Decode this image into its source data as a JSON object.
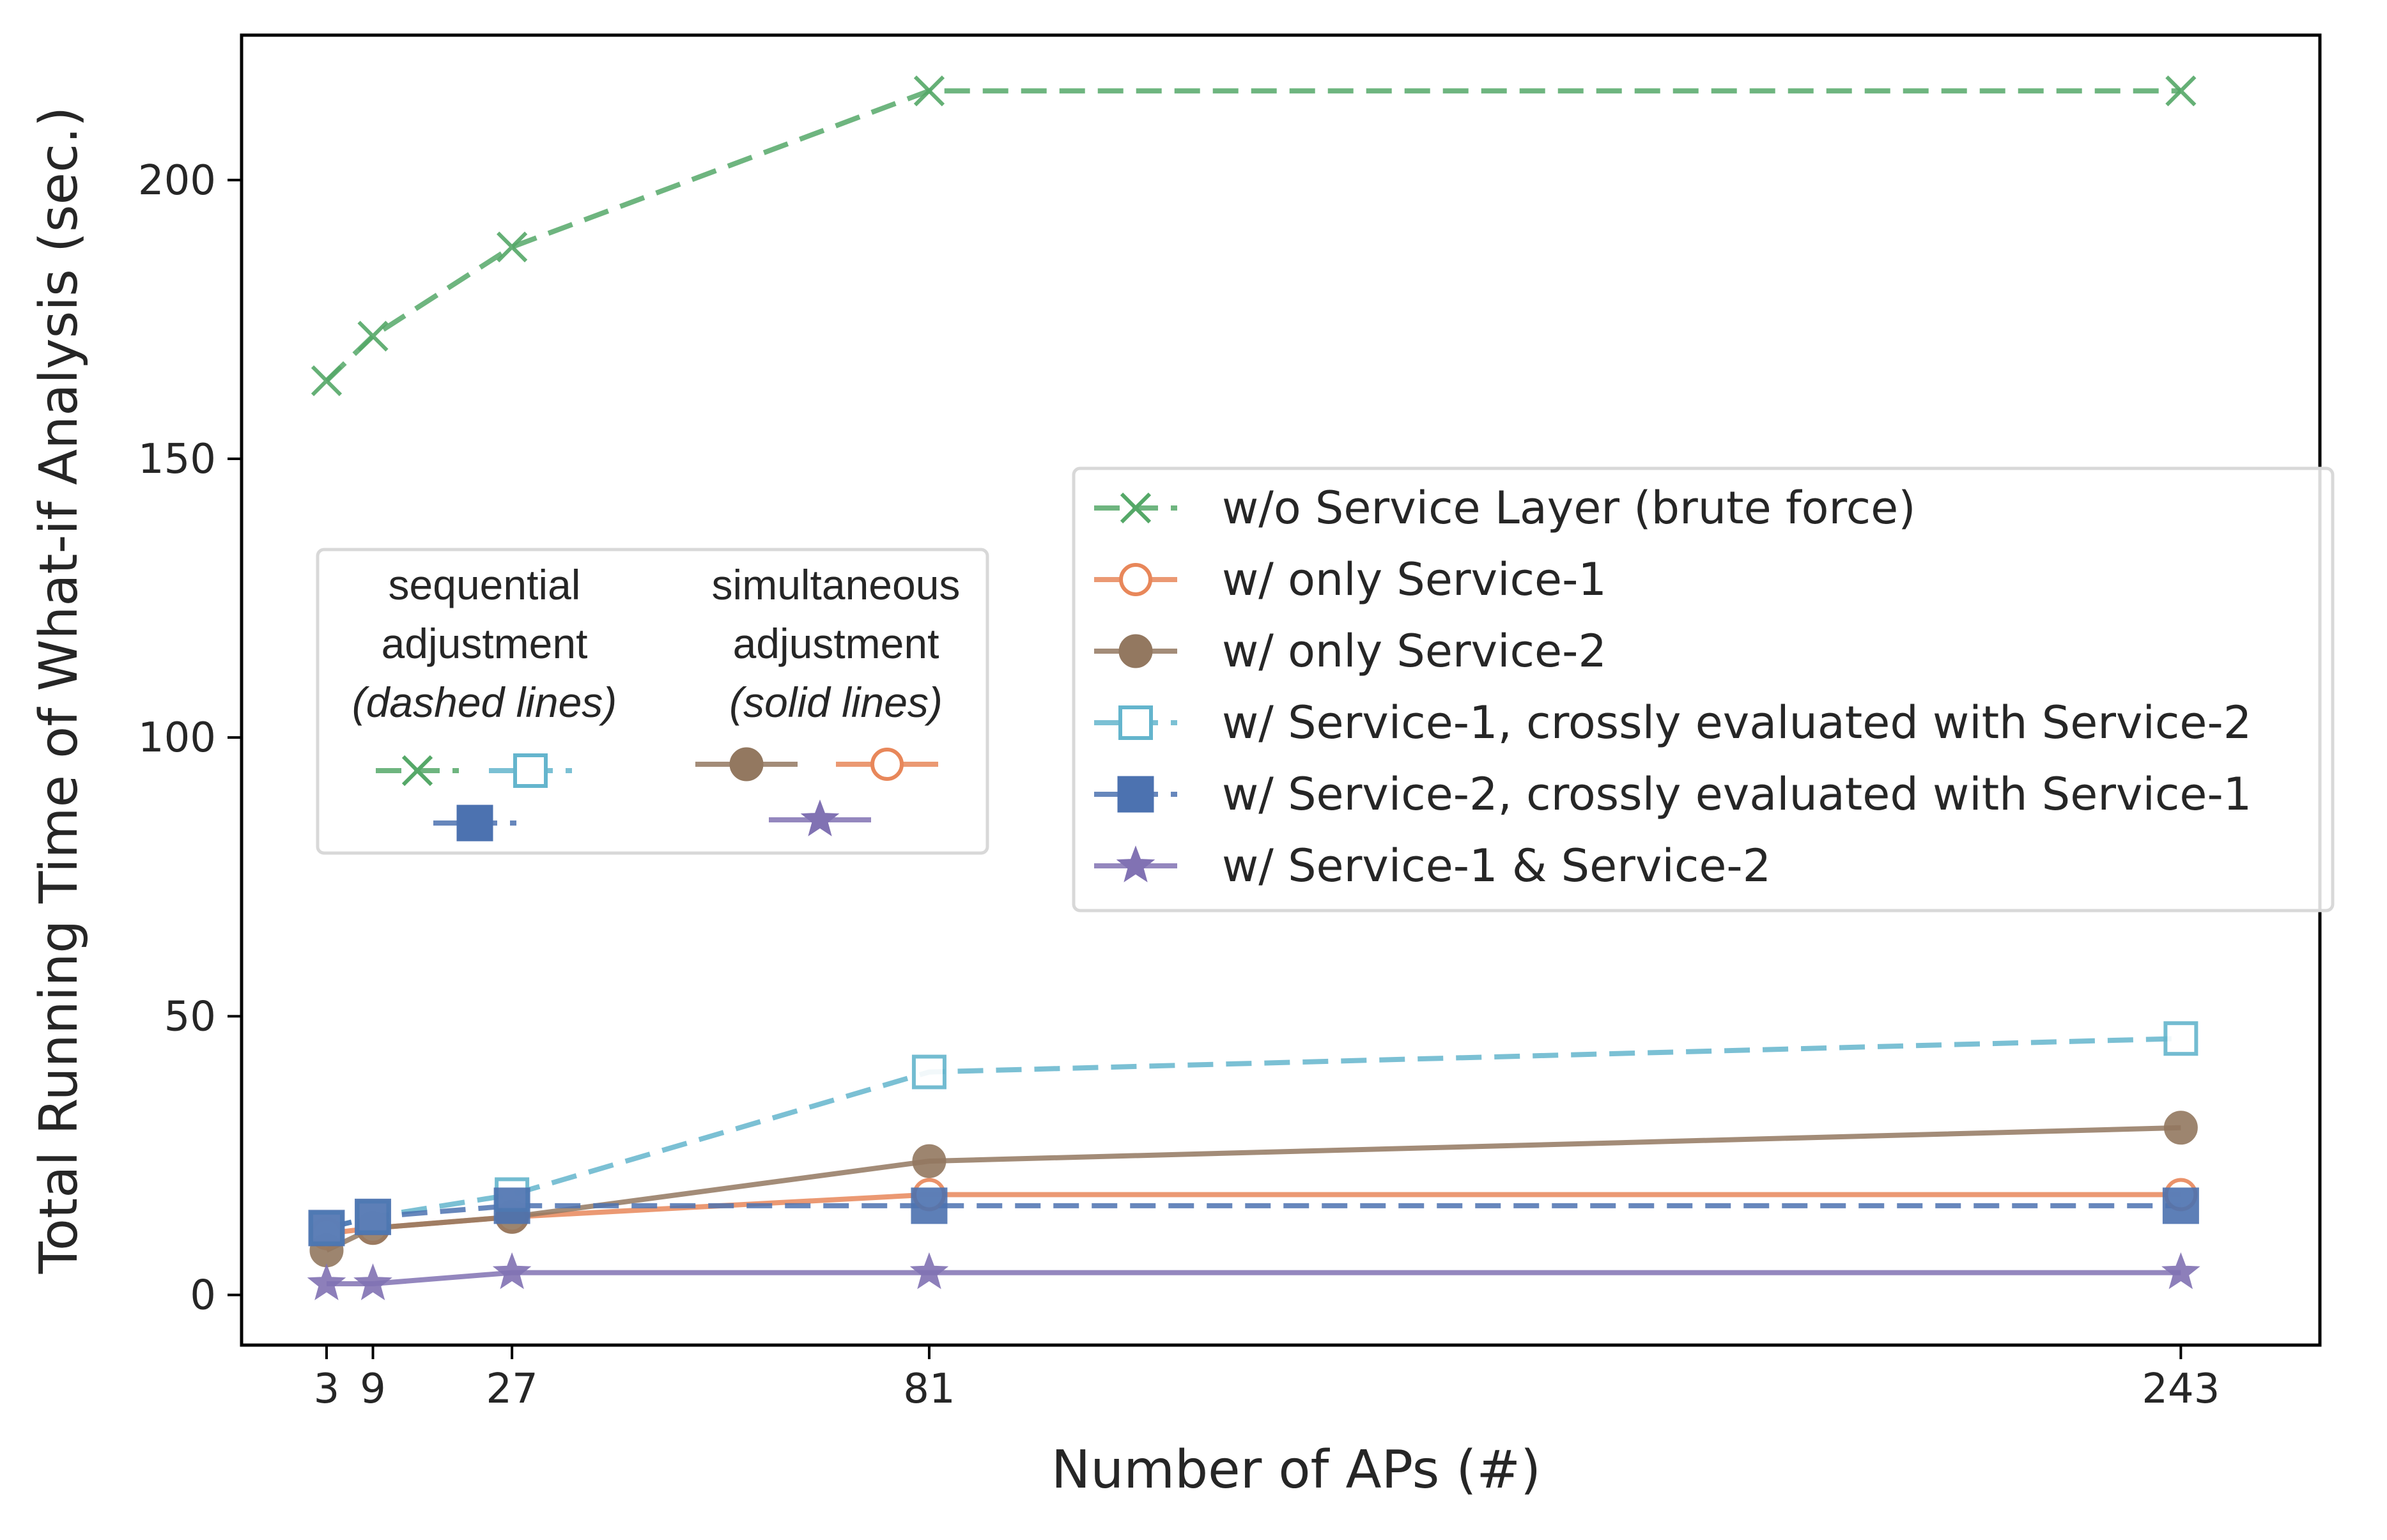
{
  "chart_data": {
    "type": "line",
    "xlabel": "Number of APs (#)",
    "ylabel": "Total Running Time of What-if Analysis (sec.)",
    "xlim": [
      -8,
      261
    ],
    "ylim": [
      -9,
      226
    ],
    "x_ticks": [
      3,
      9,
      27,
      81,
      243
    ],
    "x_tick_labels": [
      "3",
      "9",
      "27",
      "81",
      "243"
    ],
    "y_ticks": [
      0,
      50,
      100,
      150,
      200
    ],
    "y_tick_labels": [
      "0",
      "50",
      "100",
      "150",
      "200"
    ],
    "x": [
      3,
      9,
      27,
      81,
      243
    ],
    "series": [
      {
        "key": "brute",
        "name": "w/o Service Layer (brute force)",
        "color": "#55a868",
        "dash": "dashed",
        "marker": "x",
        "values": [
          164,
          172,
          188,
          216,
          216
        ]
      },
      {
        "key": "s1",
        "name": "w/ only Service-1",
        "color": "#e8875a",
        "dash": "solid",
        "marker": "circle-open",
        "values": [
          11,
          12,
          14,
          18,
          18
        ]
      },
      {
        "key": "s2",
        "name": "w/ only Service-2",
        "color": "#937860",
        "dash": "solid",
        "marker": "circle-filled",
        "values": [
          8,
          12,
          14,
          24,
          30
        ]
      },
      {
        "key": "s1x",
        "name": "w/ Service-1, crossly evaluated with Service-2",
        "color": "#64b5cd",
        "dash": "dashed",
        "marker": "square-open",
        "values": [
          12,
          14,
          18,
          40,
          46
        ]
      },
      {
        "key": "s2x",
        "name": "w/ Service-2, crossly evaluated with Service-1",
        "color": "#4c72b0",
        "dash": "dashed",
        "marker": "square-filled",
        "values": [
          12,
          14,
          16,
          16,
          16
        ]
      },
      {
        "key": "both",
        "name": "w/ Service-1 & Service-2",
        "color": "#8172b3",
        "dash": "solid",
        "marker": "star",
        "values": [
          2,
          2,
          4,
          4,
          4
        ]
      }
    ],
    "legend_position": "center-right",
    "inset_legend": {
      "sequential": {
        "line1": "sequential",
        "line2": "adjustment",
        "line3": "(dashed lines)"
      },
      "simultaneous": {
        "line1": "simultaneous",
        "line2": "adjustment",
        "line3": "(solid lines)"
      }
    }
  }
}
